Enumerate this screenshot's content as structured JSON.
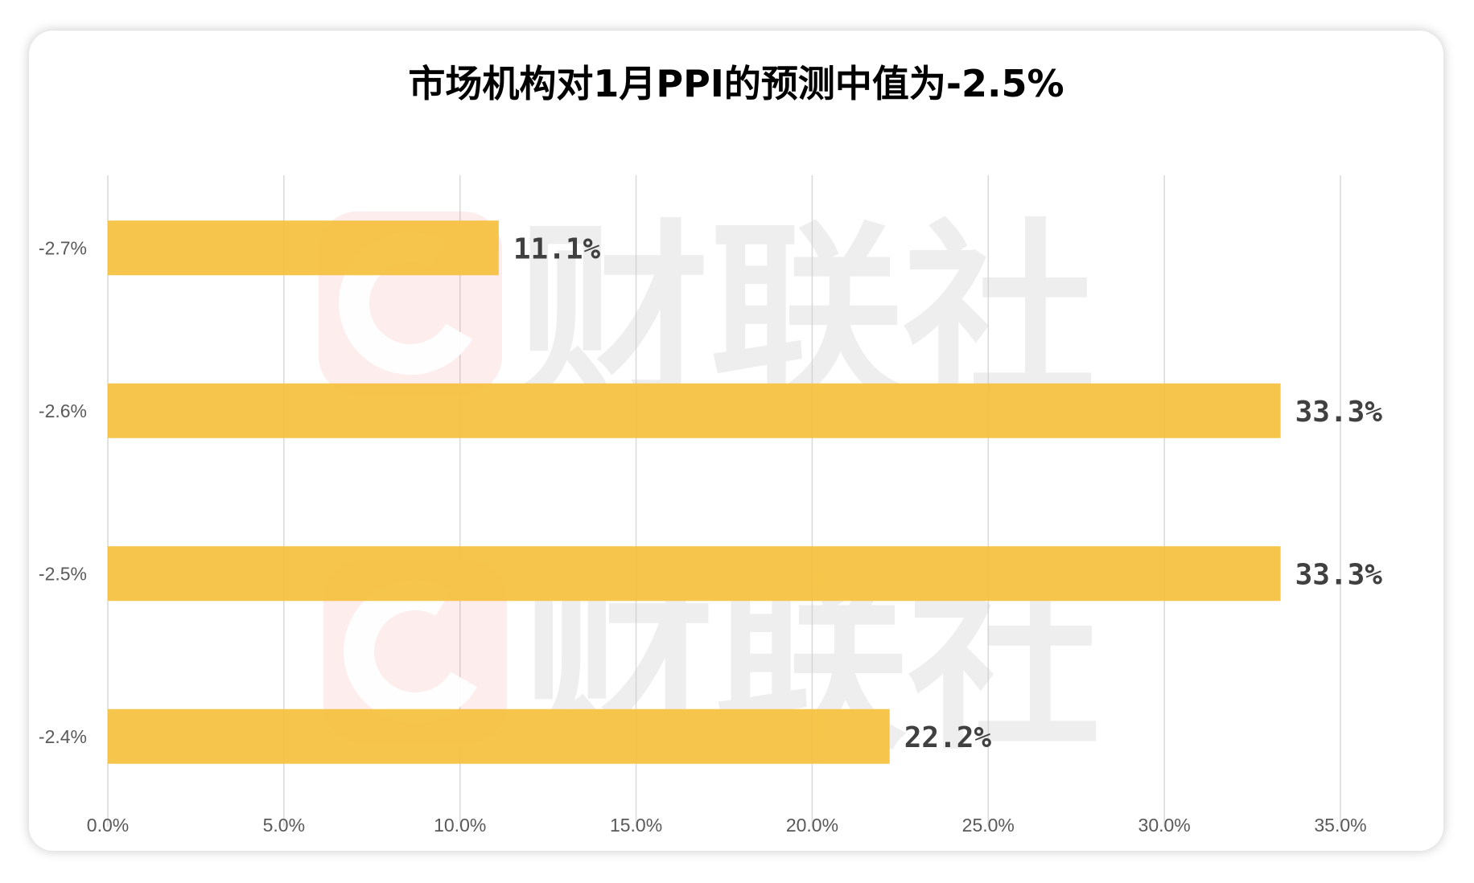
{
  "chart_data": {
    "type": "bar",
    "orientation": "horizontal",
    "title": "市场机构对1月PPI的预测中值为-2.5%",
    "categories": [
      "-2.7%",
      "-2.6%",
      "-2.5%",
      "-2.4%"
    ],
    "values": [
      11.1,
      33.3,
      33.3,
      22.2
    ],
    "data_labels": [
      "11.1%",
      "33.3%",
      "33.3%",
      "22.2%"
    ],
    "xlim": [
      0,
      35
    ],
    "x_ticks": [
      "0.0%",
      "5.0%",
      "10.0%",
      "15.0%",
      "20.0%",
      "25.0%",
      "30.0%",
      "35.0%"
    ],
    "xlabel": "",
    "ylabel": "",
    "grid": "vertical",
    "legend": "none",
    "bar_color": "#F5C242"
  },
  "watermark": {
    "text": "财联社",
    "logo_letter": "C",
    "logo_color": "#E8504A"
  }
}
